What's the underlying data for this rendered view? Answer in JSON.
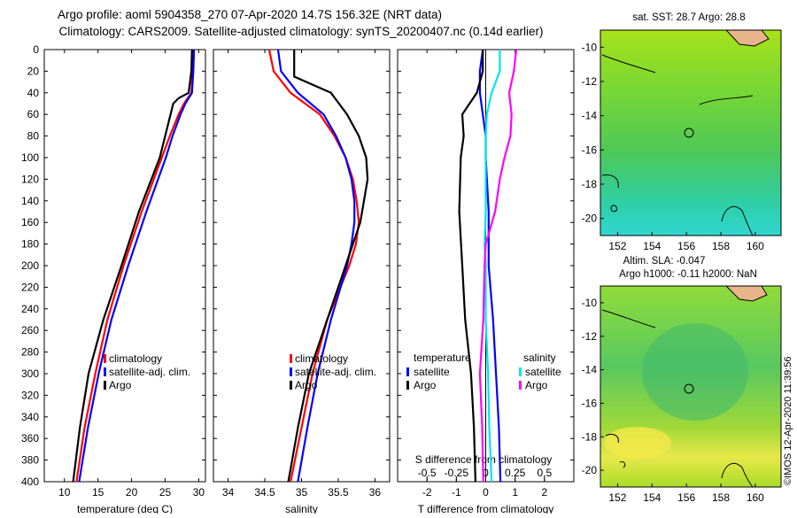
{
  "title": {
    "line1": "Argo profile: aoml 5904358_270 07-Apr-2020 14.7S 156.32E (NRT data)",
    "line2": "Climatology: CARS2009. Satellite-adjusted climatology: synTS_20200407.nc (0.14d earlier)"
  },
  "colors": {
    "climatology": "#ff0000",
    "satellite": "#0000ff",
    "argo": "#000000",
    "salinity_satellite": "#00e5ee",
    "salinity_argo": "#ff00ff",
    "map_base": "#7ed321",
    "map_land": "#e8b48a"
  },
  "chart_data": [
    {
      "type": "line",
      "id": "temperature",
      "xlabel": "temperature (deg C)",
      "ylabel": "",
      "xlim": [
        7,
        31
      ],
      "ylim": [
        0,
        400
      ],
      "xticks": [
        "10",
        "15",
        "20",
        "25",
        "30"
      ],
      "yticks": [
        "0",
        "20",
        "40",
        "60",
        "80",
        "100",
        "120",
        "140",
        "160",
        "180",
        "200",
        "220",
        "240",
        "260",
        "280",
        "300",
        "320",
        "340",
        "360",
        "380",
        "400"
      ],
      "legend": [
        "climatology",
        "satellite-adj. clim.",
        "Argo"
      ],
      "series": [
        {
          "name": "climatology",
          "depth": [
            0,
            20,
            40,
            50,
            60,
            80,
            100,
            150,
            200,
            250,
            300,
            350,
            400
          ],
          "values": [
            29.2,
            29.1,
            28.9,
            27.8,
            27.0,
            25.7,
            24.5,
            21.5,
            18.8,
            16.4,
            14.6,
            13.0,
            11.8
          ]
        },
        {
          "name": "satellite-adj. clim.",
          "depth": [
            0,
            20,
            40,
            50,
            60,
            80,
            100,
            150,
            200,
            250,
            300,
            350,
            400
          ],
          "values": [
            29.3,
            29.2,
            29.0,
            28.0,
            27.3,
            26.1,
            25.1,
            22.2,
            19.5,
            17.0,
            15.1,
            13.5,
            12.2
          ]
        },
        {
          "name": "Argo",
          "depth": [
            0,
            20,
            40,
            45,
            50,
            60,
            80,
            100,
            150,
            200,
            250,
            300,
            350,
            400
          ],
          "values": [
            29.0,
            28.9,
            28.5,
            27.0,
            26.2,
            25.8,
            25.0,
            24.2,
            21.1,
            18.5,
            15.8,
            13.6,
            12.3,
            11.3
          ]
        }
      ]
    },
    {
      "type": "line",
      "id": "salinity",
      "xlabel": "salinity",
      "xlim": [
        33.8,
        36.2
      ],
      "ylim": [
        0,
        400
      ],
      "xticks": [
        "34",
        "34.5",
        "35",
        "35.5",
        "36"
      ],
      "legend": [
        "climatology",
        "satellite-adj. clim.",
        "Argo"
      ],
      "series": [
        {
          "name": "climatology",
          "depth": [
            0,
            20,
            40,
            60,
            80,
            100,
            120,
            140,
            160,
            180,
            200,
            250,
            300,
            350,
            400
          ],
          "values": [
            34.56,
            34.62,
            34.85,
            35.25,
            35.45,
            35.6,
            35.7,
            35.75,
            35.78,
            35.74,
            35.65,
            35.35,
            35.15,
            35.0,
            34.85
          ]
        },
        {
          "name": "satellite-adj. clim.",
          "depth": [
            0,
            20,
            40,
            60,
            80,
            100,
            120,
            140,
            160,
            180,
            200,
            250,
            300,
            350,
            400
          ],
          "values": [
            34.68,
            34.72,
            34.95,
            35.3,
            35.47,
            35.6,
            35.68,
            35.72,
            35.72,
            35.68,
            35.62,
            35.4,
            35.22,
            35.08,
            34.95
          ]
        },
        {
          "name": "Argo",
          "depth": [
            0,
            20,
            25,
            40,
            60,
            80,
            100,
            120,
            140,
            160,
            180,
            200,
            250,
            300,
            350,
            400
          ],
          "values": [
            34.9,
            34.9,
            34.9,
            35.4,
            35.62,
            35.78,
            35.88,
            35.9,
            35.85,
            35.8,
            35.7,
            35.6,
            35.35,
            35.1,
            34.95,
            34.82
          ]
        }
      ]
    },
    {
      "type": "line",
      "id": "difference",
      "xlabel": "T difference from climatology",
      "xlim": [
        -3,
        3
      ],
      "ylim": [
        0,
        400
      ],
      "xticks": [
        "-2",
        "-1",
        "0",
        "1",
        "2"
      ],
      "secondary_title": "S difference from climatology",
      "secondary_ticks": [
        "-0.5",
        "-0.25",
        "0",
        "0.25",
        "0.5"
      ],
      "legend_temperature": {
        "title": "temperature",
        "items": [
          "satellite",
          "Argo"
        ]
      },
      "legend_salinity": {
        "title": "salinity",
        "items": [
          "satellite",
          "Argo"
        ]
      },
      "series": [
        {
          "name": "temperature satellite",
          "depth": [
            0,
            20,
            40,
            60,
            80,
            100,
            150,
            200,
            250,
            300,
            350,
            400
          ],
          "values": [
            -0.1,
            -0.2,
            -0.2,
            -0.1,
            0.0,
            0.0,
            0.1,
            0.1,
            0.25,
            0.35,
            0.45,
            0.5
          ]
        },
        {
          "name": "temperature Argo",
          "depth": [
            0,
            20,
            40,
            60,
            80,
            100,
            150,
            200,
            250,
            300,
            350,
            400
          ],
          "values": [
            -0.1,
            -0.1,
            -0.3,
            -0.8,
            -0.75,
            -0.85,
            -0.9,
            -0.8,
            -0.7,
            -0.5,
            -0.4,
            -0.35
          ]
        },
        {
          "name": "salinity satellite",
          "depth": [
            0,
            20,
            40,
            60,
            80,
            100,
            150,
            180,
            200,
            250,
            300,
            350,
            400
          ],
          "values": [
            0.12,
            0.12,
            0.05,
            0.01,
            0.0,
            0.0,
            0.0,
            -0.01,
            0.0,
            0.0,
            0.02,
            0.03,
            0.05
          ]
        },
        {
          "name": "salinity Argo",
          "depth": [
            0,
            20,
            40,
            60,
            80,
            100,
            120,
            150,
            180,
            200,
            250,
            300,
            350,
            400
          ],
          "values": [
            0.26,
            0.24,
            0.2,
            0.22,
            0.21,
            0.16,
            0.12,
            0.08,
            0.0,
            -0.01,
            -0.02,
            -0.05,
            -0.03,
            -0.02
          ]
        }
      ]
    }
  ],
  "maps": [
    {
      "title": "sat. SST: 28.7 Argo: 28.8",
      "xticks": [
        "152",
        "154",
        "156",
        "158",
        "160"
      ],
      "yticks": [
        "-10",
        "-12",
        "-14",
        "-16",
        "-18",
        "-20"
      ],
      "lon": [
        151.0,
        161.5
      ],
      "lat": [
        -21.0,
        -9.0
      ],
      "marker": {
        "lon": 156.32,
        "lat": -14.7
      }
    },
    {
      "title": "Altim. SLA: -0.047",
      "subtitle": "Argo h1000: -0.11 h2000: NaN",
      "xticks": [
        "152",
        "154",
        "156",
        "158",
        "160"
      ],
      "yticks": [
        "-10",
        "-12",
        "-14",
        "-16",
        "-18",
        "-20"
      ],
      "lon": [
        151.0,
        161.5
      ],
      "lat": [
        -21.0,
        -9.0
      ],
      "marker": {
        "lon": 156.32,
        "lat": -14.7
      }
    }
  ],
  "stamp": "©IMOS 12-Apr-2020 11:39:56"
}
